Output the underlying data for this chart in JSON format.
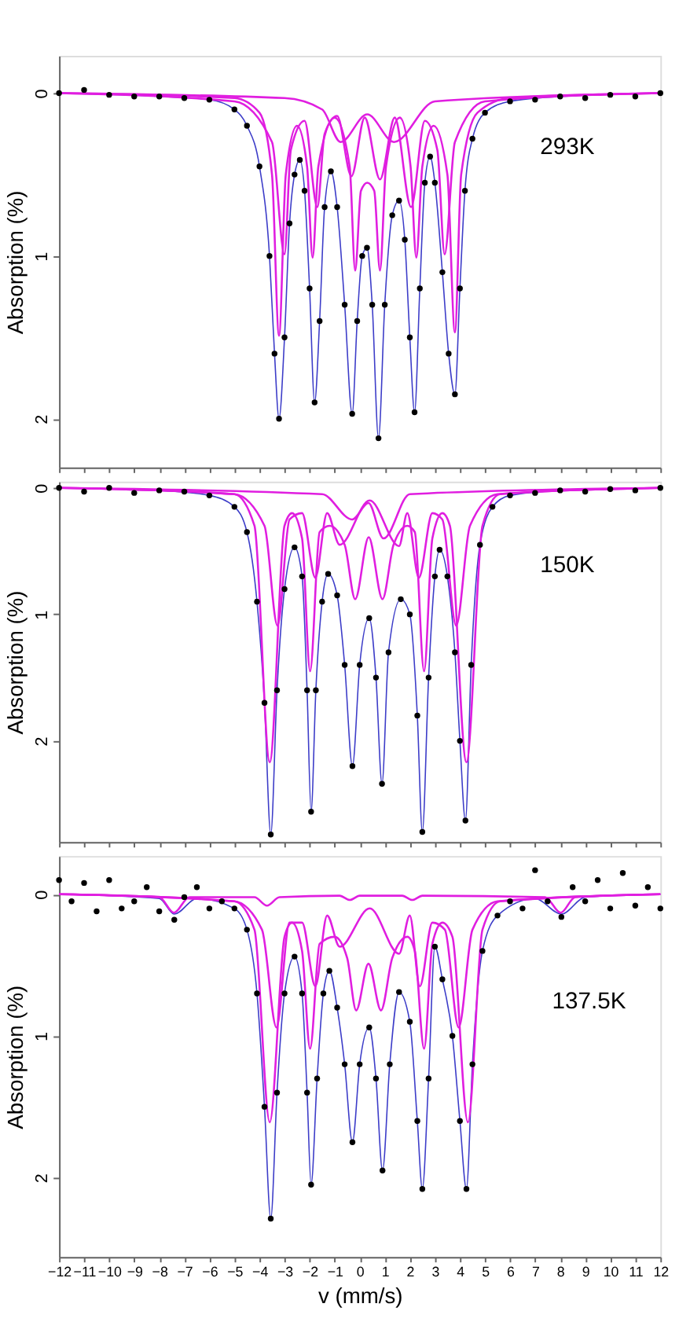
{
  "chart_data": [
    {
      "type": "line",
      "ylabel": "Absorption (%)",
      "xlim": [
        -12,
        12
      ],
      "xticks": [
        -12,
        -11,
        -10,
        -9,
        -8,
        -7,
        -6,
        -5,
        -4,
        -3,
        -2,
        -1,
        0,
        1,
        2,
        3,
        4,
        5,
        6,
        7,
        8,
        9,
        10,
        11,
        12
      ],
      "ylim": [
        2.3,
        -0.23
      ],
      "yticks": [
        0,
        1,
        2
      ],
      "tick_labels": "y",
      "annotations": [
        "293K"
      ],
      "series": [
        {
          "type": "scatter",
          "marker": "circle",
          "color": "#000000",
          "x": [
            -12,
            -11,
            -10,
            -9,
            -8,
            -7,
            -6,
            -5,
            -4.5,
            -4,
            -3.6,
            -3.4,
            -3.22,
            -3.0,
            -2.8,
            -2.6,
            -2.39,
            -2.2,
            -2.0,
            -1.8,
            -1.6,
            -1.4,
            -1.15,
            -0.9,
            -0.6,
            -0.3,
            -0.1,
            0.1,
            0.29,
            0.5,
            0.75,
            1.0,
            1.3,
            1.57,
            1.8,
            2.0,
            2.19,
            2.4,
            2.6,
            2.81,
            3.0,
            3.3,
            3.55,
            3.8,
            4.0,
            4.2,
            4.5,
            5,
            6,
            7,
            8,
            9,
            10,
            11,
            12
          ],
          "values": [
            0,
            -0.02,
            0.01,
            0.02,
            0.02,
            0.03,
            0.04,
            0.1,
            0.2,
            0.45,
            1.0,
            1.6,
            2.0,
            1.5,
            0.8,
            0.5,
            0.41,
            0.6,
            1.2,
            1.9,
            1.4,
            0.7,
            0.48,
            0.7,
            1.3,
            1.97,
            1.4,
            1.0,
            0.95,
            1.3,
            2.12,
            1.3,
            0.75,
            0.66,
            0.9,
            1.5,
            1.96,
            1.2,
            0.55,
            0.39,
            0.55,
            1.1,
            1.6,
            1.85,
            1.2,
            0.6,
            0.28,
            0.12,
            0.05,
            0.04,
            0.02,
            0.03,
            0.01,
            0.02,
            0
          ]
        },
        {
          "type": "line",
          "color": "#3c3cc8",
          "x": [
            -12,
            -8,
            -6,
            -5,
            -4.5,
            -4,
            -3.6,
            -3.4,
            -3.22,
            -3.0,
            -2.8,
            -2.6,
            -2.39,
            -2.2,
            -2.0,
            -1.8,
            -1.6,
            -1.4,
            -1.15,
            -0.9,
            -0.6,
            -0.3,
            -0.1,
            0.1,
            0.29,
            0.5,
            0.75,
            1.0,
            1.3,
            1.57,
            1.8,
            2.0,
            2.19,
            2.4,
            2.6,
            2.81,
            3.0,
            3.3,
            3.55,
            3.8,
            4.0,
            4.2,
            4.5,
            5,
            6,
            8,
            12
          ],
          "values": [
            0,
            0.02,
            0.04,
            0.1,
            0.2,
            0.45,
            1.0,
            1.6,
            2.0,
            1.5,
            0.8,
            0.5,
            0.41,
            0.6,
            1.2,
            1.9,
            1.4,
            0.7,
            0.48,
            0.7,
            1.3,
            1.97,
            1.4,
            1.0,
            0.95,
            1.3,
            2.12,
            1.3,
            0.75,
            0.66,
            0.9,
            1.5,
            1.96,
            1.2,
            0.55,
            0.39,
            0.55,
            1.1,
            1.6,
            1.85,
            1.2,
            0.6,
            0.28,
            0.12,
            0.05,
            0.02,
            0
          ]
        },
        {
          "type": "line",
          "color": "#e01ee0",
          "x": [
            -12,
            -5,
            -4,
            -3.5,
            -3.22,
            -2.95,
            -2.5,
            -2.1,
            -1.88,
            -1.65,
            -1.0,
            -0.4,
            -0.18,
            0.05,
            0.3,
            0.58,
            0.81,
            1.05,
            1.6,
            2.03,
            2.26,
            2.5,
            2.95,
            3.5,
            3.8,
            4.05,
            4.7,
            6,
            12
          ],
          "values": [
            0,
            0.03,
            0.12,
            0.5,
            1.49,
            0.5,
            0.2,
            0.45,
            1.01,
            0.45,
            0.15,
            0.45,
            1.09,
            0.6,
            0.55,
            0.6,
            1.09,
            0.45,
            0.15,
            0.45,
            1.01,
            0.45,
            0.2,
            0.5,
            1.47,
            0.5,
            0.12,
            0.03,
            0
          ]
        },
        {
          "type": "line",
          "color": "#e01ee0",
          "x": [
            -12,
            -5,
            -3.5,
            -3.0,
            -2.75,
            -2.2,
            -1.69,
            -1.4,
            -0.9,
            -0.33,
            0.2,
            0.81,
            1.4,
            2.05,
            2.6,
            3.1,
            3.39,
            3.8,
            5,
            12
          ],
          "values": [
            0,
            0.05,
            0.3,
            0.99,
            0.35,
            0.17,
            0.7,
            0.25,
            0.14,
            0.51,
            0.15,
            0.53,
            0.15,
            0.7,
            0.17,
            0.35,
            0.99,
            0.3,
            0.05,
            0
          ]
        },
        {
          "type": "line",
          "color": "#e01ee0",
          "x": [
            -12,
            -3,
            -1.5,
            -0.76,
            0.3,
            1.37,
            3,
            12
          ],
          "values": [
            0,
            0.03,
            0.1,
            0.3,
            0.13,
            0.3,
            0.05,
            0
          ]
        }
      ]
    },
    {
      "type": "line",
      "ylabel": "Absorption (%)",
      "xlim": [
        -12,
        12
      ],
      "xticks": [
        -12,
        -11,
        -10,
        -9,
        -8,
        -7,
        -6,
        -5,
        -4,
        -3,
        -2,
        -1,
        0,
        1,
        2,
        3,
        4,
        5,
        6,
        7,
        8,
        9,
        10,
        11,
        12
      ],
      "ylim": [
        2.8,
        -0.05
      ],
      "yticks": [
        0,
        1,
        2
      ],
      "tick_labels": "y",
      "annotations": [
        "150K"
      ],
      "series": [
        {
          "type": "scatter",
          "marker": "circle",
          "color": "#000000",
          "x": [
            -12,
            -11,
            -10,
            -9,
            -8,
            -7,
            -6,
            -5,
            -4.5,
            -4.1,
            -3.8,
            -3.55,
            -3.3,
            -3.0,
            -2.6,
            -2.3,
            -2.1,
            -1.94,
            -1.75,
            -1.5,
            -1.26,
            -0.9,
            -0.6,
            -0.29,
            0.0,
            0.38,
            0.65,
            0.89,
            1.15,
            1.64,
            2.0,
            2.3,
            2.5,
            2.75,
            3.0,
            3.19,
            3.5,
            3.8,
            4.0,
            4.22,
            4.45,
            4.8,
            5.3,
            6,
            7,
            8,
            9,
            10,
            11,
            12
          ],
          "values": [
            0,
            0.03,
            0.0,
            0.04,
            0.02,
            0.03,
            0.06,
            0.15,
            0.35,
            0.9,
            1.7,
            2.74,
            1.6,
            0.8,
            0.47,
            0.7,
            1.6,
            2.56,
            1.6,
            0.9,
            0.68,
            0.85,
            1.4,
            2.2,
            1.4,
            1.03,
            1.5,
            2.34,
            1.3,
            0.88,
            1.0,
            1.8,
            2.72,
            1.5,
            0.7,
            0.49,
            0.7,
            1.3,
            2.0,
            2.63,
            1.4,
            0.45,
            0.15,
            0.06,
            0.04,
            0.02,
            0.03,
            0.01,
            0.02,
            0
          ]
        },
        {
          "type": "line",
          "color": "#3c3cc8",
          "x": [
            -12,
            -8,
            -6,
            -5,
            -4.5,
            -4.1,
            -3.8,
            -3.55,
            -3.3,
            -3.0,
            -2.6,
            -2.3,
            -2.1,
            -1.94,
            -1.75,
            -1.5,
            -1.26,
            -0.9,
            -0.6,
            -0.29,
            0.0,
            0.38,
            0.65,
            0.89,
            1.15,
            1.64,
            2.0,
            2.3,
            2.5,
            2.75,
            3.0,
            3.19,
            3.5,
            3.8,
            4.0,
            4.22,
            4.45,
            4.8,
            5.3,
            6,
            8,
            12
          ],
          "values": [
            0,
            0.02,
            0.06,
            0.15,
            0.35,
            0.9,
            1.7,
            2.74,
            1.6,
            0.8,
            0.47,
            0.7,
            1.6,
            2.56,
            1.6,
            0.9,
            0.68,
            0.85,
            1.4,
            2.2,
            1.4,
            1.03,
            1.5,
            2.34,
            1.3,
            0.88,
            1.0,
            1.8,
            2.72,
            1.5,
            0.7,
            0.49,
            0.7,
            1.3,
            2.0,
            2.63,
            1.4,
            0.45,
            0.15,
            0.06,
            0.02,
            0
          ]
        },
        {
          "type": "line",
          "color": "#e01ee0",
          "x": [
            -12,
            -5,
            -4.2,
            -3.59,
            -3.0,
            -2.7,
            -2.3,
            -1.98,
            -1.6,
            -1.2,
            -0.6,
            -0.18,
            0.36,
            0.91,
            1.35,
            1.9,
            2.2,
            2.57,
            2.9,
            3.3,
            3.6,
            4.26,
            4.9,
            5.6,
            12
          ],
          "values": [
            0,
            0.05,
            0.3,
            2.17,
            0.3,
            0.2,
            0.4,
            1.45,
            0.35,
            0.3,
            0.45,
            0.88,
            0.39,
            0.88,
            0.45,
            0.3,
            0.35,
            1.45,
            0.4,
            0.2,
            0.3,
            2.17,
            0.3,
            0.05,
            0
          ]
        },
        {
          "type": "line",
          "color": "#e01ee0",
          "x": [
            -12,
            -5,
            -3.8,
            -3.28,
            -2.8,
            -2.3,
            -1.77,
            -1.3,
            -0.8,
            0.4,
            1.57,
            1.9,
            2.36,
            2.9,
            3.3,
            3.85,
            4.4,
            5.5,
            12
          ],
          "values": [
            0,
            0.05,
            0.3,
            1.09,
            0.25,
            0.2,
            0.71,
            0.2,
            0.45,
            0.1,
            0.46,
            0.2,
            0.71,
            0.2,
            0.25,
            1.09,
            0.3,
            0.05,
            0
          ]
        },
        {
          "type": "line",
          "color": "#e01ee0",
          "x": [
            -12,
            -1.5,
            -0.3,
            0.35,
            0.95,
            2,
            12
          ],
          "values": [
            0,
            0.05,
            0.25,
            0.12,
            0.4,
            0.05,
            0
          ]
        }
      ]
    },
    {
      "type": "line",
      "xlabel": "v (mm/s)",
      "ylabel": "Absorption (%)",
      "xlim": [
        -12,
        12
      ],
      "xticks": [
        -12,
        -11,
        -10,
        -9,
        -8,
        -7,
        -6,
        -5,
        -4,
        -3,
        -2,
        -1,
        0,
        1,
        2,
        3,
        4,
        5,
        6,
        7,
        8,
        9,
        10,
        11,
        12
      ],
      "ylim": [
        2.56,
        -0.27
      ],
      "yticks": [
        0,
        1,
        2
      ],
      "annotations": [
        "137.5K"
      ],
      "series": [
        {
          "type": "scatter",
          "marker": "circle",
          "color": "#000000",
          "x": [
            -12,
            -11.5,
            -11,
            -10.5,
            -10,
            -9.5,
            -9,
            -8.5,
            -8,
            -7.4,
            -7,
            -6.5,
            -6,
            -5.5,
            -5,
            -4.5,
            -4.1,
            -3.8,
            -3.55,
            -3.3,
            -3.0,
            -2.6,
            -2.3,
            -2.1,
            -1.94,
            -1.7,
            -1.45,
            -1.21,
            -0.9,
            -0.6,
            -0.29,
            0.0,
            0.38,
            0.65,
            0.91,
            1.2,
            1.57,
            2.0,
            2.3,
            2.5,
            2.75,
            3.0,
            3.3,
            3.7,
            4.0,
            4.26,
            4.5,
            4.9,
            5.5,
            6,
            6.5,
            7,
            7.5,
            8.05,
            8.5,
            9,
            9.5,
            10,
            10.5,
            11,
            11.5,
            12
          ],
          "values": [
            -0.1,
            0.05,
            -0.08,
            0.12,
            -0.1,
            0.1,
            0.05,
            -0.05,
            0.12,
            0.18,
            0.02,
            -0.05,
            0.1,
            0.05,
            0.1,
            0.25,
            0.7,
            1.5,
            2.29,
            1.4,
            0.7,
            0.44,
            0.7,
            1.4,
            2.05,
            1.3,
            0.7,
            0.54,
            0.8,
            1.2,
            1.75,
            1.2,
            0.94,
            1.3,
            1.95,
            1.2,
            0.69,
            0.9,
            1.6,
            2.08,
            1.3,
            0.37,
            0.6,
            1.0,
            1.6,
            2.08,
            1.2,
            0.4,
            0.15,
            0.05,
            0.1,
            -0.17,
            0.05,
            0.16,
            -0.05,
            0.05,
            -0.1,
            0.1,
            -0.15,
            0.08,
            -0.05,
            0.1
          ]
        },
        {
          "type": "line",
          "color": "#3c3cc8",
          "x": [
            -12,
            -8,
            -7.4,
            -6.5,
            -5,
            -4.5,
            -4.1,
            -3.8,
            -3.55,
            -3.3,
            -3.0,
            -2.6,
            -2.3,
            -2.1,
            -1.94,
            -1.7,
            -1.45,
            -1.21,
            -0.9,
            -0.6,
            -0.29,
            0.0,
            0.38,
            0.65,
            0.91,
            1.2,
            1.57,
            2.0,
            2.3,
            2.5,
            2.75,
            3.0,
            3.3,
            3.7,
            4.0,
            4.26,
            4.5,
            4.9,
            5.5,
            7,
            8.05,
            9,
            12
          ],
          "values": [
            0,
            0.03,
            0.14,
            0.03,
            0.1,
            0.25,
            0.7,
            1.5,
            2.29,
            1.4,
            0.7,
            0.44,
            0.7,
            1.4,
            2.05,
            1.3,
            0.7,
            0.54,
            0.8,
            1.2,
            1.75,
            1.2,
            0.94,
            1.3,
            1.95,
            1.2,
            0.69,
            0.9,
            1.6,
            2.08,
            1.3,
            0.37,
            0.6,
            1.0,
            1.6,
            2.08,
            1.2,
            0.4,
            0.15,
            0.03,
            0.14,
            0.02,
            0
          ]
        },
        {
          "type": "line",
          "color": "#e01ee0",
          "x": [
            -12,
            -5,
            -4.2,
            -3.59,
            -3.0,
            -2.7,
            -2.3,
            -1.98,
            -1.6,
            -1.0,
            -0.5,
            -0.14,
            0.35,
            0.85,
            1.3,
            1.9,
            2.2,
            2.57,
            2.9,
            3.3,
            3.7,
            4.32,
            4.9,
            5.6,
            12
          ],
          "values": [
            0,
            0.05,
            0.25,
            1.61,
            0.3,
            0.2,
            0.4,
            1.09,
            0.35,
            0.3,
            0.45,
            0.82,
            0.49,
            0.82,
            0.45,
            0.3,
            0.4,
            1.09,
            0.35,
            0.2,
            0.3,
            1.61,
            0.25,
            0.05,
            0
          ]
        },
        {
          "type": "line",
          "color": "#e01ee0",
          "x": [
            -12,
            -5,
            -3.9,
            -3.32,
            -2.8,
            -2.3,
            -1.77,
            -1.3,
            -0.8,
            0.4,
            1.57,
            2.0,
            2.4,
            2.9,
            3.4,
            3.95,
            4.5,
            5.5,
            12
          ],
          "values": [
            0,
            0.05,
            0.25,
            0.94,
            0.2,
            0.2,
            0.65,
            0.15,
            0.37,
            0.1,
            0.42,
            0.15,
            0.65,
            0.2,
            0.25,
            0.94,
            0.25,
            0.05,
            0
          ]
        },
        {
          "type": "line",
          "color": "#e01ee0",
          "x": [
            -12,
            -8,
            -7.41,
            -6.8,
            -4.2,
            -3.7,
            -3.2,
            -0.8,
            -0.39,
            0,
            1.7,
            2.1,
            2.5,
            7.4,
            8.02,
            8.6,
            12
          ],
          "values": [
            0,
            0.02,
            0.13,
            0.02,
            0.02,
            0.08,
            0.02,
            0.01,
            0.04,
            0.01,
            0.01,
            0.04,
            0.01,
            0.02,
            0.13,
            0.02,
            0
          ]
        }
      ]
    }
  ]
}
